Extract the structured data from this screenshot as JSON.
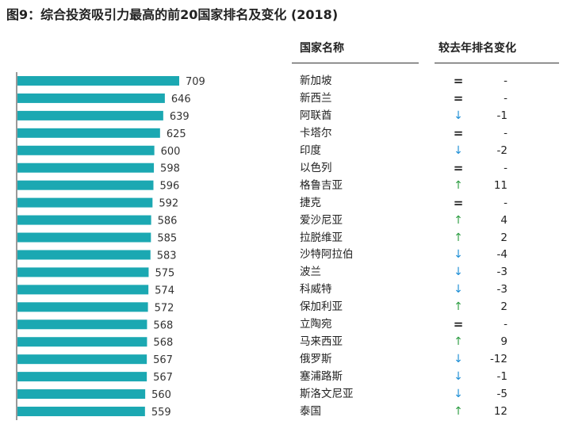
{
  "title": "图9：综合投资吸引力最高的前20国家排名及变化 (2018)",
  "columns": {
    "country": "国家名称",
    "change": "较去年排名变化"
  },
  "colors": {
    "bar": "#1ba8b2",
    "up": "#2f9e44",
    "down": "#1f8fd6",
    "axis": "#333333"
  },
  "change_symbols": {
    "same": "=",
    "up": "↑",
    "down": "↓"
  },
  "chart_data": {
    "type": "bar",
    "orientation": "horizontal",
    "categories": [
      "新加坡",
      "新西兰",
      "阿联酋",
      "卡塔尔",
      "印度",
      "以色列",
      "格鲁吉亚",
      "捷克",
      "爱沙尼亚",
      "拉脱维亚",
      "沙特阿拉伯",
      "波兰",
      "科威特",
      "保加利亚",
      "立陶宛",
      "马来西亚",
      "俄罗斯",
      "塞浦路斯",
      "斯洛文尼亚",
      "泰国"
    ],
    "values": [
      709,
      646,
      639,
      625,
      600,
      598,
      596,
      592,
      586,
      585,
      583,
      575,
      574,
      572,
      568,
      568,
      567,
      567,
      560,
      559
    ],
    "value_labels": [
      "709",
      "646",
      "639",
      "625",
      "600",
      "598",
      "596",
      "592",
      "586",
      "585",
      "583",
      "575",
      "574",
      "572",
      "568",
      "568",
      "567",
      "567",
      "560",
      "559"
    ],
    "rank_change": [
      {
        "dir": "same",
        "value": "-"
      },
      {
        "dir": "same",
        "value": "-"
      },
      {
        "dir": "down",
        "value": "-1"
      },
      {
        "dir": "same",
        "value": "-"
      },
      {
        "dir": "down",
        "value": "-2"
      },
      {
        "dir": "same",
        "value": "-"
      },
      {
        "dir": "up",
        "value": "11"
      },
      {
        "dir": "same",
        "value": "-"
      },
      {
        "dir": "up",
        "value": "4"
      },
      {
        "dir": "up",
        "value": "2"
      },
      {
        "dir": "down",
        "value": "-4"
      },
      {
        "dir": "down",
        "value": "-3"
      },
      {
        "dir": "down",
        "value": "-3"
      },
      {
        "dir": "up",
        "value": "2"
      },
      {
        "dir": "same",
        "value": "-"
      },
      {
        "dir": "up",
        "value": "9"
      },
      {
        "dir": "down",
        "value": "-12"
      },
      {
        "dir": "down",
        "value": "-1"
      },
      {
        "dir": "down",
        "value": "-5"
      },
      {
        "dir": "up",
        "value": "12"
      }
    ],
    "xlim": [
      0,
      709
    ],
    "grid": false,
    "legend": "none"
  }
}
